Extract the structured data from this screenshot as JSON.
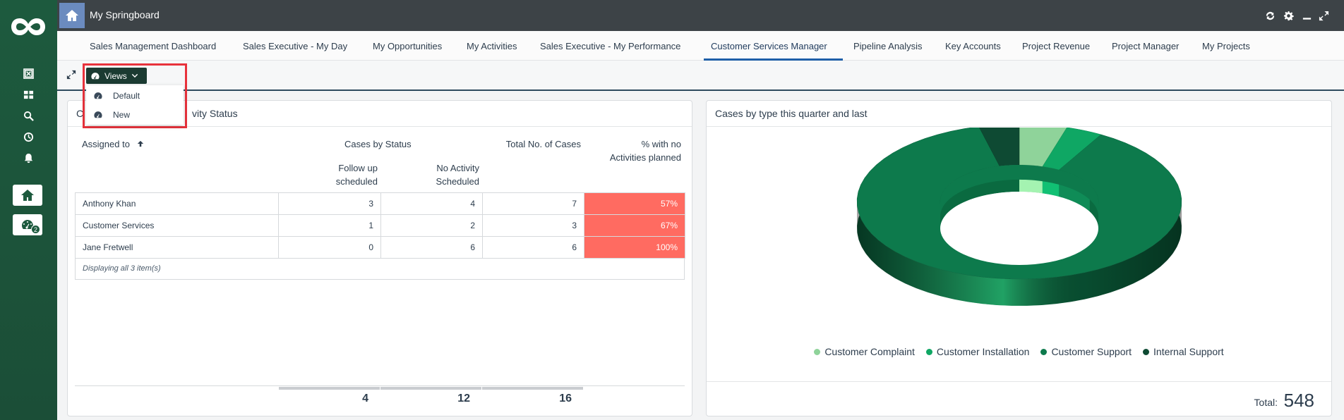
{
  "app": {
    "title": "My Springboard"
  },
  "rail": {
    "dashboard_badge": "2"
  },
  "tabs": [
    {
      "label": "Sales Management Dashboard"
    },
    {
      "label": "Sales Executive - My Day"
    },
    {
      "label": "My Opportunities"
    },
    {
      "label": "My Activities"
    },
    {
      "label": "Sales Executive - My Performance"
    },
    {
      "label": "Customer Services Manager",
      "active": true
    },
    {
      "label": "Pipeline Analysis"
    },
    {
      "label": "Key Accounts"
    },
    {
      "label": "Project Revenue"
    },
    {
      "label": "Project Manager"
    },
    {
      "label": "My Projects"
    }
  ],
  "views": {
    "button_label": "Views",
    "menu": [
      {
        "label": "Default"
      },
      {
        "label": "New"
      }
    ]
  },
  "left_panel": {
    "title_visible": "C",
    "title_visible_tail": "vity Status",
    "headers": {
      "assigned_to": "Assigned to",
      "cases_by_status": "Cases by Status",
      "follow_up_line1": "Follow up",
      "follow_up_line2": "scheduled",
      "no_activity_line1": "No Activity",
      "no_activity_line2": "Scheduled",
      "total_cases": "Total No. of Cases",
      "pct_line1": "% with no",
      "pct_line2": "Activities planned"
    },
    "rows": [
      {
        "name": "Anthony Khan",
        "follow_up": "3",
        "no_activity": "4",
        "total": "7",
        "pct": "57%"
      },
      {
        "name": "Customer Services",
        "follow_up": "1",
        "no_activity": "2",
        "total": "3",
        "pct": "67%"
      },
      {
        "name": "Jane Fretwell",
        "follow_up": "0",
        "no_activity": "6",
        "total": "6",
        "pct": "100%"
      }
    ],
    "footer": "Displaying all 3 item(s)",
    "totals": {
      "follow_up": "4",
      "no_activity": "12",
      "total": "16"
    }
  },
  "right_panel": {
    "title": "Cases by type this quarter and last",
    "total_label": "Total:",
    "total_value": "548"
  },
  "chart_data": {
    "type": "pie",
    "style": "3d-donut",
    "title": "Cases by type this quarter and last",
    "total": 548,
    "legend_position": "bottom",
    "series": [
      {
        "name": "Customer Complaint",
        "value": 26,
        "color": "#8fd39a"
      },
      {
        "name": "Customer Installation",
        "value": 20,
        "color": "#0fa764"
      },
      {
        "name": "Customer Support",
        "value": 480,
        "color": "#0d7a4c"
      },
      {
        "name": "Internal Support",
        "value": 22,
        "color": "#0e4a33"
      }
    ]
  },
  "colors": {
    "rail": "#1d5a3e",
    "topbar": "#3d4347",
    "alert": "#ff6b61",
    "highlight": "#e8323c"
  }
}
